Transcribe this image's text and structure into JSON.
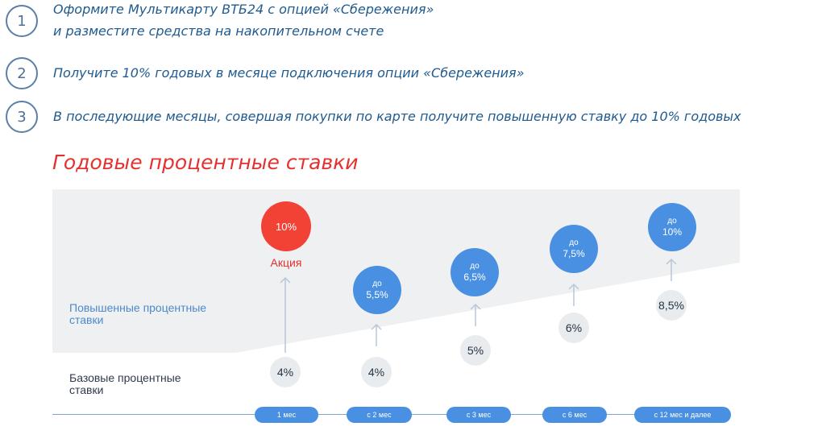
{
  "steps": [
    {
      "number": "1",
      "line1": "Оформите Мультикарту ВТБ24 с опцией «Сбережения»",
      "line2": "и разместите средства на накопительном счете"
    },
    {
      "number": "2",
      "line1": "Получите 10% годовых в месяце подключения опции «Сбережения»"
    },
    {
      "number": "3",
      "line1": "В последующие месяцы, совершая покупки по карте получите повышенную ставку до 10% годовых"
    }
  ],
  "heading": "Годовые процентные ставки",
  "labels": {
    "raised": [
      "Повышенные процентные",
      "ставки"
    ],
    "base": [
      "Базовые процентные",
      "ставки"
    ]
  },
  "promo": {
    "rate": "10%",
    "label": "Акция"
  },
  "raised_rates": [
    {
      "prefix": "до",
      "value": "5,5%"
    },
    {
      "prefix": "до",
      "value": "6,5%"
    },
    {
      "prefix": "до",
      "value": "7,5%"
    },
    {
      "prefix": "до",
      "value": "10%"
    }
  ],
  "base_rates": [
    "4%",
    "4%",
    "5%",
    "6%",
    "8,5%"
  ],
  "periods": [
    "1 мес",
    "с 2 мес",
    "с 3 мес",
    "с 6 мес",
    "с 12 мес и далее"
  ],
  "colors": {
    "accent_red": "#f24236",
    "accent_blue": "#4a90e2",
    "step_text": "#1f5a8f",
    "band": "#eef0f2",
    "base_circle": "#e9ecef"
  }
}
